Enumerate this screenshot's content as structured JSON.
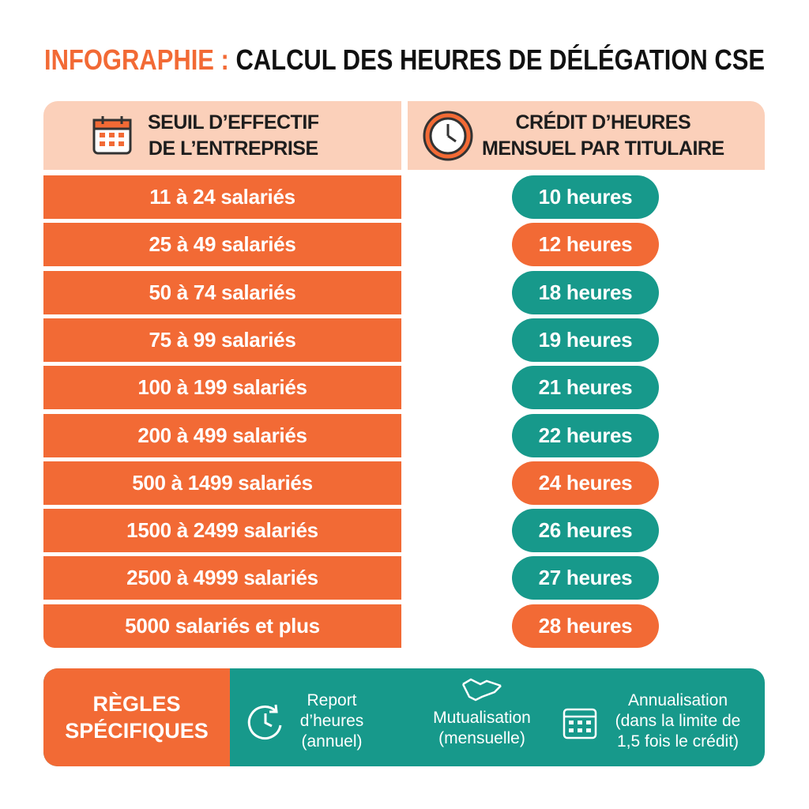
{
  "title": {
    "prefix": "INFOGRAPHIE :",
    "main": "CALCUL DES HEURES DE DÉLÉGATION CSE"
  },
  "table": {
    "headers": [
      [
        "SEUIL D’EFFECTIF",
        "DE L’ENTREPRISE"
      ],
      [
        "CRÉDIT D’HEURES",
        "MENSUEL PAR TITULAIRE"
      ]
    ],
    "rows": [
      {
        "seuil": "11 à 24 salariés",
        "credit": "10 heures",
        "color": "#17998b"
      },
      {
        "seuil": "25 à 49 salariés",
        "credit": "12 heures",
        "color": "#f26a35"
      },
      {
        "seuil": "50 à 74 salariés",
        "credit": "18 heures",
        "color": "#17998b"
      },
      {
        "seuil": "75 à 99 salariés",
        "credit": "19 heures",
        "color": "#17998b"
      },
      {
        "seuil": "100 à 199 salariés",
        "credit": "21 heures",
        "color": "#17998b"
      },
      {
        "seuil": "200 à 499 salariés",
        "credit": "22 heures",
        "color": "#17998b"
      },
      {
        "seuil": "500 à 1499 salariés",
        "credit": "24 heures",
        "color": "#f26a35"
      },
      {
        "seuil": "1500 à 2499 salariés",
        "credit": "26 heures",
        "color": "#17998b"
      },
      {
        "seuil": "2500 à 4999 salariés",
        "credit": "27 heures",
        "color": "#17998b"
      },
      {
        "seuil": "5000 salariés et plus",
        "credit": "28 heures",
        "color": "#f26a35"
      }
    ]
  },
  "footer": {
    "label": [
      "RÈGLES",
      "SPÉCIFIQUES"
    ],
    "items": [
      [
        "Report",
        "d’heures",
        "(annuel)"
      ],
      [
        "Mutualisation",
        "(mensuelle)"
      ],
      [
        "Annualisation",
        "(dans la limite de",
        "1,5 fois le crédit)"
      ]
    ]
  }
}
